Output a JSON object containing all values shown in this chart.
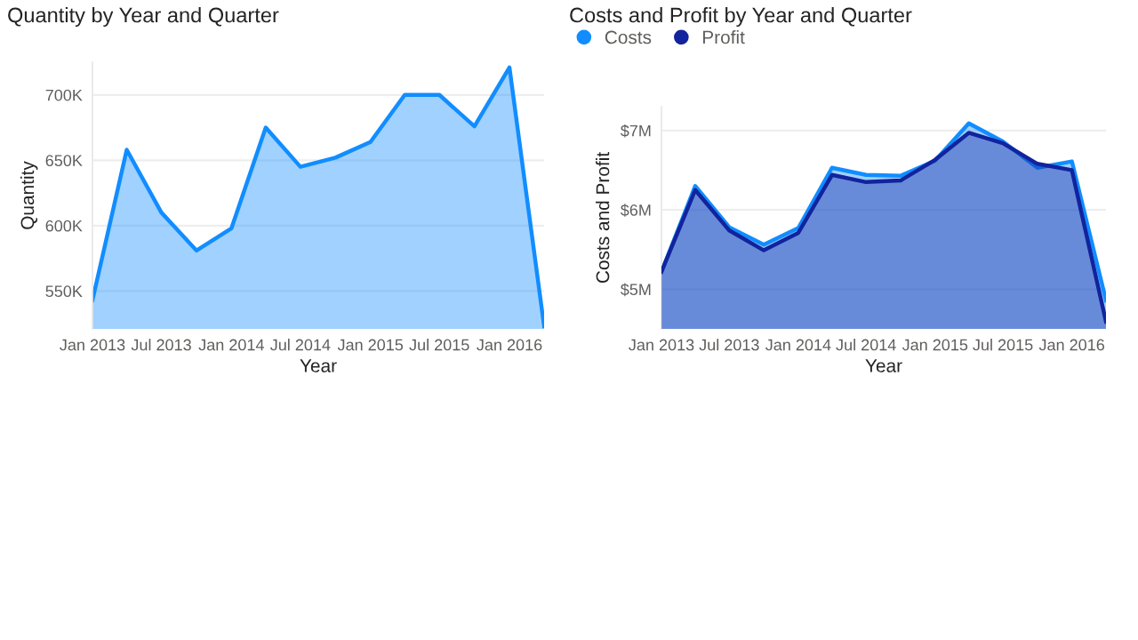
{
  "chart_data": [
    {
      "type": "area",
      "title": "Quantity by Year and Quarter",
      "xlabel": "Year",
      "ylabel": "Quantity",
      "x": [
        "2013-01",
        "2013-04",
        "2013-07",
        "2013-10",
        "2014-01",
        "2014-04",
        "2014-07",
        "2014-10",
        "2015-01",
        "2015-04",
        "2015-07",
        "2015-10",
        "2016-01",
        "2016-04"
      ],
      "series": [
        {
          "color": "#118dff",
          "values": [
            543,
            658,
            610,
            581,
            598,
            675,
            645,
            652,
            664,
            700,
            700,
            676,
            721,
            523
          ]
        }
      ],
      "xlim": [
        "2013-01",
        "2016-04"
      ],
      "xticks": [
        {
          "value": "2013-01",
          "label": "Jan 2013"
        },
        {
          "value": "2013-07",
          "label": "Jul 2013"
        },
        {
          "value": "2014-01",
          "label": "Jan 2014"
        },
        {
          "value": "2014-07",
          "label": "Jul 2014"
        },
        {
          "value": "2015-01",
          "label": "Jan 2015"
        },
        {
          "value": "2015-07",
          "label": "Jul 2015"
        },
        {
          "value": "2016-01",
          "label": "Jan 2016"
        }
      ],
      "ylim": [
        521,
        725
      ],
      "yticks": [
        {
          "value": 550,
          "label": "550K"
        },
        {
          "value": 600,
          "label": "600K"
        },
        {
          "value": 650,
          "label": "650K"
        },
        {
          "value": 700,
          "label": "700K"
        }
      ],
      "grid": "y",
      "legend": false
    },
    {
      "type": "area",
      "title": "Costs and Profit by Year and Quarter",
      "xlabel": "Year",
      "ylabel": "Costs and Profit",
      "x": [
        "2013-01",
        "2013-04",
        "2013-07",
        "2013-10",
        "2014-01",
        "2014-04",
        "2014-07",
        "2014-10",
        "2015-01",
        "2015-04",
        "2015-07",
        "2015-10",
        "2016-01",
        "2016-04"
      ],
      "series": [
        {
          "name": "Costs",
          "color": "#118dff",
          "values": [
            5.22,
            6.3,
            5.78,
            5.56,
            5.77,
            6.53,
            6.44,
            6.43,
            6.62,
            7.09,
            6.86,
            6.53,
            6.61,
            4.86
          ]
        },
        {
          "name": "Profit",
          "color": "#12239e",
          "values": [
            5.22,
            6.25,
            5.74,
            5.49,
            5.71,
            6.44,
            6.35,
            6.37,
            6.63,
            6.97,
            6.84,
            6.58,
            6.5,
            4.59
          ]
        }
      ],
      "xlim": [
        "2013-01",
        "2016-04"
      ],
      "xticks": [
        {
          "value": "2013-01",
          "label": "Jan 2013"
        },
        {
          "value": "2013-07",
          "label": "Jul 2013"
        },
        {
          "value": "2014-01",
          "label": "Jan 2014"
        },
        {
          "value": "2014-07",
          "label": "Jul 2014"
        },
        {
          "value": "2015-01",
          "label": "Jan 2015"
        },
        {
          "value": "2015-07",
          "label": "Jul 2015"
        },
        {
          "value": "2016-01",
          "label": "Jan 2016"
        }
      ],
      "ylim": [
        4.5,
        7.3
      ],
      "yticks": [
        {
          "value": 5,
          "label": "$5M"
        },
        {
          "value": 6,
          "label": "$6M"
        },
        {
          "value": 7,
          "label": "$7M"
        }
      ],
      "grid": "y",
      "legend": "top left"
    }
  ]
}
